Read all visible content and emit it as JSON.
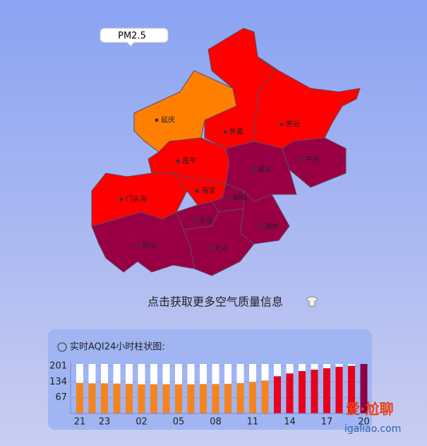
{
  "map": {
    "tooltip": "PM2.5",
    "districts": [
      "延庆",
      "怀柔",
      "密云",
      "昌平",
      "顺义",
      "平谷",
      "门头沟",
      "海淀",
      "朝阳",
      "丰台",
      "通州",
      "房山",
      "大兴"
    ]
  },
  "prompt": "点击获取更多空气质量信息",
  "aqi_chart": {
    "type": "bar",
    "title": "实时AQI24小时柱状图:",
    "categories": [
      "21",
      null,
      "23",
      null,
      null,
      "02",
      null,
      null,
      "05",
      null,
      null,
      "08",
      null,
      null,
      "11",
      null,
      null,
      "14",
      null,
      null,
      "17",
      null,
      null,
      "20"
    ],
    "values": [
      130,
      128,
      128,
      127,
      126,
      124,
      124,
      124,
      124,
      124,
      125,
      125,
      126,
      129,
      134,
      140,
      158,
      170,
      180,
      186,
      192,
      198,
      202,
      210
    ],
    "colors": [
      "#f5841f",
      "#f5841f",
      "#f5841f",
      "#f5841f",
      "#f5841f",
      "#f5841f",
      "#f5841f",
      "#f5841f",
      "#f5841f",
      "#f5841f",
      "#f5841f",
      "#f5841f",
      "#f5841f",
      "#f5841f",
      "#f5841f",
      "#f5841f",
      "#e8001c",
      "#e8001c",
      "#e8001c",
      "#e8001c",
      "#e8001c",
      "#e8001c",
      "#e8001c",
      "#8b0044"
    ],
    "ylim": [
      0,
      210
    ],
    "yticks": [
      67,
      134,
      201
    ]
  },
  "watermark": {
    "brand": "爱·尬聊",
    "url": "igaliao.com"
  }
}
